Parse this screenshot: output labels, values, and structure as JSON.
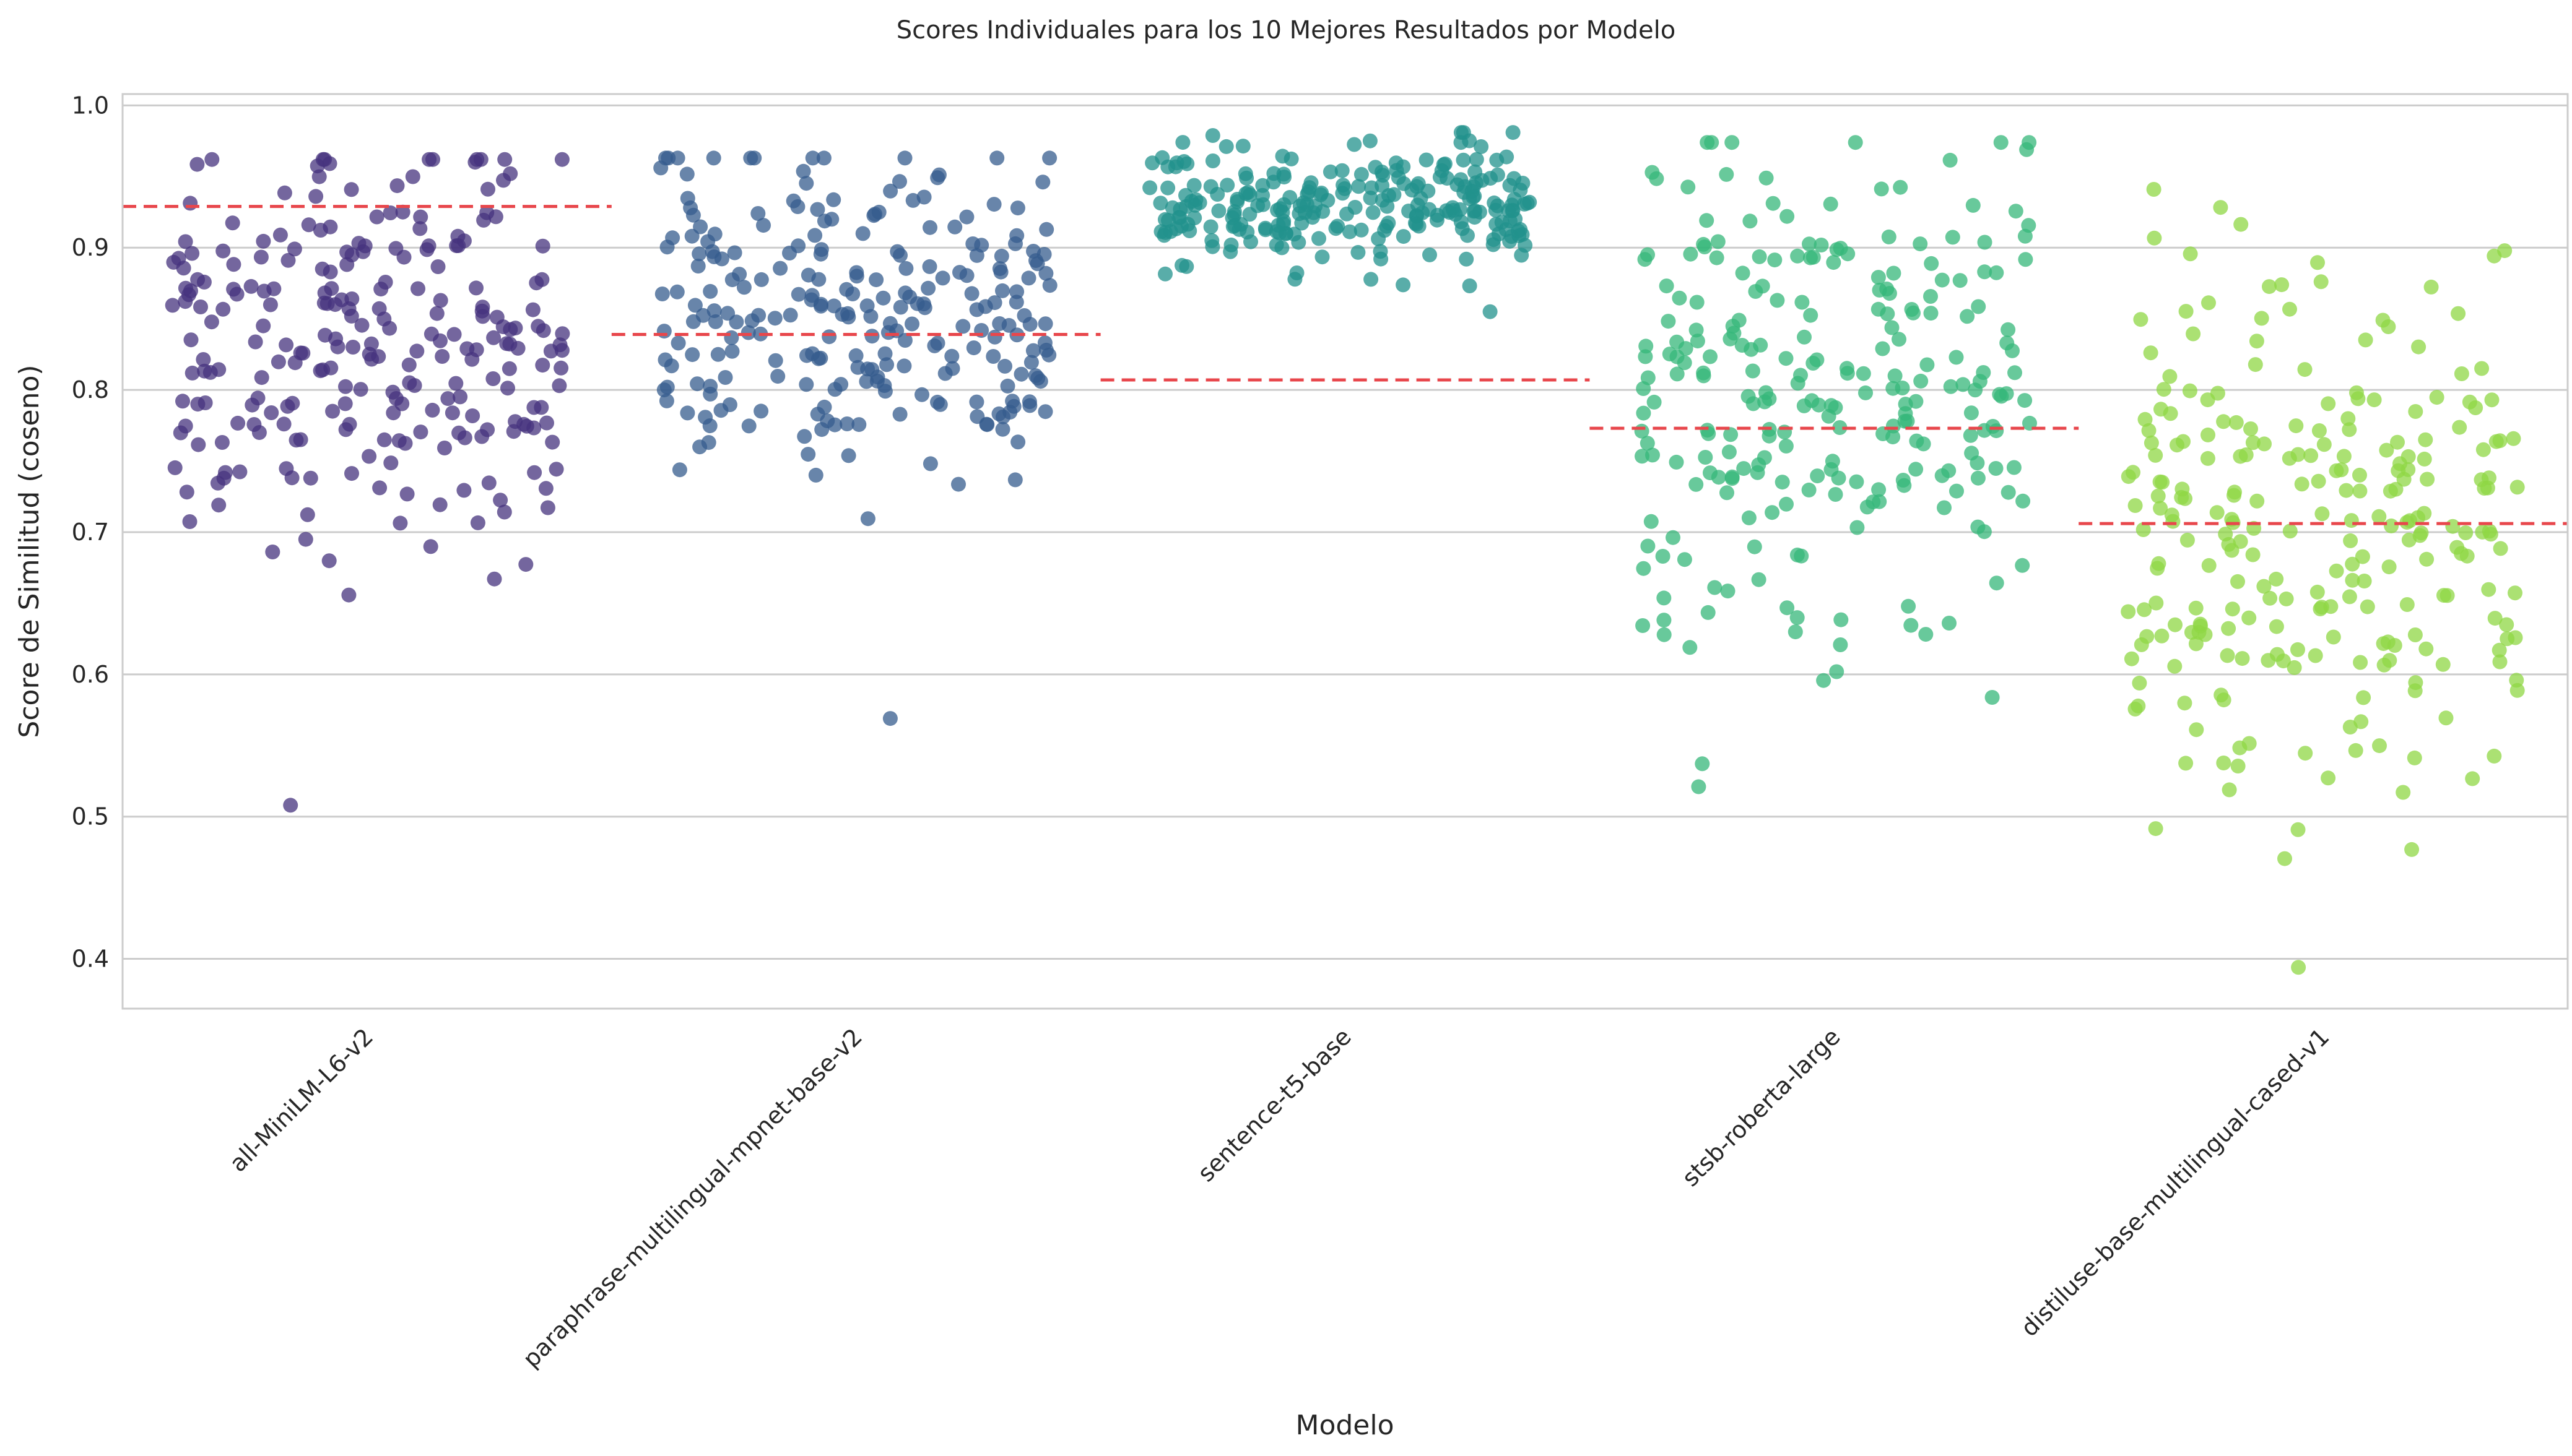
{
  "chart_data": {
    "type": "scatter",
    "subtype": "strip",
    "title": "Scores Individuales para los 10 Mejores Resultados por Modelo",
    "xlabel": "Modelo",
    "ylabel": "Score de Similitud (coseno)",
    "ylim": [
      0.365,
      1.008
    ],
    "yticks": [
      0.4,
      0.5,
      0.6,
      0.7,
      0.8,
      0.9,
      1.0
    ],
    "ytick_labels": [
      "0.4",
      "0.5",
      "0.6",
      "0.7",
      "0.8",
      "0.9",
      "1.0"
    ],
    "grid": "horizontal",
    "legend": "none",
    "colors": [
      "#46337e",
      "#365c8d",
      "#21918c",
      "#35b779",
      "#8fd744"
    ],
    "reference_line_color": "#e8474c",
    "categories": [
      "all-MiniLM-L6-v2",
      "paraphrase-multilingual-mpnet-base-v2",
      "sentence-t5-base",
      "stsb-roberta-large",
      "distiluse-base-multilingual-cased-v1"
    ],
    "series": [
      {
        "category": "all-MiniLM-L6-v2",
        "reference_line": 0.929,
        "points_per_model": 250,
        "min": 0.508,
        "max": 0.962,
        "median": 0.83
      },
      {
        "category": "paraphrase-multilingual-mpnet-base-v2",
        "reference_line": 0.839,
        "points_per_model": 250,
        "min": 0.569,
        "max": 0.963,
        "median": 0.855
      },
      {
        "category": "sentence-t5-base",
        "reference_line": 0.807,
        "points_per_model": 250,
        "min": 0.855,
        "max": 0.981,
        "median": 0.93
      },
      {
        "category": "stsb-roberta-large",
        "reference_line": 0.773,
        "points_per_model": 250,
        "min": 0.521,
        "max": 0.974,
        "median": 0.79
      },
      {
        "category": "distiluse-base-multilingual-cased-v1",
        "reference_line": 0.706,
        "points_per_model": 250,
        "min": 0.394,
        "max": 0.941,
        "median": 0.7
      }
    ]
  }
}
